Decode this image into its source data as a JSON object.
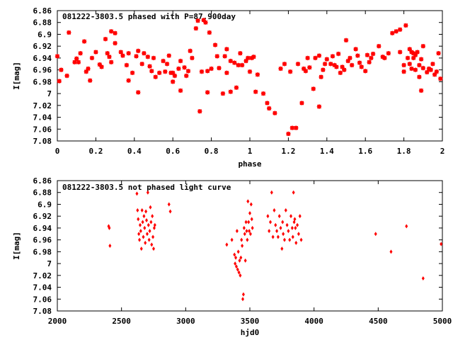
{
  "chart_data": [
    {
      "type": "scatter",
      "title": "081222-3803.5 phased with P=87.900day",
      "xlabel": "phase",
      "ylabel": "I[mag]",
      "xlim": [
        0,
        2
      ],
      "ylim": [
        7.08,
        6.86
      ],
      "y_inverted": true,
      "grid": false,
      "marker": "star",
      "color": "#ff0000",
      "xticks": [
        "0",
        "0.2",
        "0.4",
        "0.6",
        "0.8",
        "1",
        "1.2",
        "1.4",
        "1.6",
        "1.8",
        "2"
      ],
      "yticks": [
        "6.86",
        "6.88",
        "6.9",
        "6.92",
        "6.94",
        "6.96",
        "6.98",
        "7",
        "7.02",
        "7.04",
        "7.06",
        "7.08"
      ],
      "points": [
        [
          0.0,
          6.937
        ],
        [
          0.01,
          6.979
        ],
        [
          0.02,
          6.96
        ],
        [
          0.05,
          6.97
        ],
        [
          0.06,
          6.897
        ],
        [
          0.09,
          6.947
        ],
        [
          0.1,
          6.941
        ],
        [
          0.11,
          6.947
        ],
        [
          0.12,
          6.932
        ],
        [
          0.14,
          6.912
        ],
        [
          0.15,
          6.963
        ],
        [
          0.16,
          6.958
        ],
        [
          0.17,
          6.978
        ],
        [
          0.18,
          6.94
        ],
        [
          0.2,
          6.93
        ],
        [
          0.22,
          6.951
        ],
        [
          0.23,
          6.955
        ],
        [
          0.25,
          6.908
        ],
        [
          0.26,
          6.932
        ],
        [
          0.27,
          6.938
        ],
        [
          0.28,
          6.947
        ],
        [
          0.28,
          6.895
        ],
        [
          0.3,
          6.898
        ],
        [
          0.3,
          6.915
        ],
        [
          0.33,
          6.93
        ],
        [
          0.34,
          6.936
        ],
        [
          0.36,
          6.952
        ],
        [
          0.37,
          6.978
        ],
        [
          0.37,
          6.932
        ],
        [
          0.39,
          6.965
        ],
        [
          0.41,
          6.937
        ],
        [
          0.42,
          6.928
        ],
        [
          0.42,
          6.998
        ],
        [
          0.44,
          6.95
        ],
        [
          0.45,
          6.932
        ],
        [
          0.47,
          6.938
        ],
        [
          0.48,
          6.954
        ],
        [
          0.49,
          6.962
        ],
        [
          0.5,
          6.94
        ],
        [
          0.51,
          6.972
        ],
        [
          0.53,
          6.965
        ],
        [
          0.55,
          6.945
        ],
        [
          0.56,
          6.963
        ],
        [
          0.57,
          6.95
        ],
        [
          0.58,
          6.936
        ],
        [
          0.59,
          6.965
        ],
        [
          0.6,
          6.98
        ],
        [
          0.6,
          6.965
        ],
        [
          0.61,
          6.97
        ],
        [
          0.63,
          6.958
        ],
        [
          0.64,
          6.995
        ],
        [
          0.64,
          6.945
        ],
        [
          0.66,
          6.956
        ],
        [
          0.67,
          6.97
        ],
        [
          0.68,
          6.962
        ],
        [
          0.69,
          6.928
        ],
        [
          0.7,
          6.94
        ],
        [
          0.72,
          6.89
        ],
        [
          0.73,
          6.877
        ],
        [
          0.74,
          7.03
        ],
        [
          0.75,
          6.963
        ],
        [
          0.76,
          6.876
        ],
        [
          0.77,
          6.88
        ],
        [
          0.78,
          6.962
        ],
        [
          0.78,
          6.998
        ],
        [
          0.79,
          6.897
        ],
        [
          0.8,
          6.958
        ],
        [
          0.82,
          6.918
        ],
        [
          0.83,
          6.937
        ],
        [
          0.84,
          6.957
        ],
        [
          0.86,
          7.0
        ],
        [
          0.87,
          6.937
        ],
        [
          0.88,
          6.925
        ],
        [
          0.88,
          6.965
        ],
        [
          0.9,
          6.945
        ],
        [
          0.9,
          6.997
        ],
        [
          0.92,
          6.948
        ],
        [
          0.93,
          6.99
        ],
        [
          0.94,
          6.952
        ],
        [
          0.95,
          6.932
        ],
        [
          0.96,
          6.952
        ],
        [
          0.98,
          6.945
        ],
        [
          0.99,
          6.94
        ],
        [
          1.0,
          6.963
        ],
        [
          1.01,
          6.94
        ],
        [
          1.02,
          6.938
        ],
        [
          1.03,
          6.997
        ],
        [
          1.04,
          6.968
        ],
        [
          1.07,
          7.0
        ],
        [
          1.09,
          7.016
        ],
        [
          1.1,
          7.025
        ],
        [
          1.13,
          7.033
        ],
        [
          1.16,
          6.958
        ],
        [
          1.18,
          6.95
        ],
        [
          1.2,
          7.068
        ],
        [
          1.21,
          6.963
        ],
        [
          1.22,
          7.058
        ],
        [
          1.24,
          7.058
        ],
        [
          1.25,
          6.95
        ],
        [
          1.27,
          7.016
        ],
        [
          1.28,
          6.958
        ],
        [
          1.29,
          6.962
        ],
        [
          1.3,
          6.94
        ],
        [
          1.31,
          6.956
        ],
        [
          1.33,
          6.992
        ],
        [
          1.34,
          6.94
        ],
        [
          1.36,
          6.936
        ],
        [
          1.36,
          7.022
        ],
        [
          1.37,
          6.972
        ],
        [
          1.38,
          6.96
        ],
        [
          1.39,
          6.95
        ],
        [
          1.4,
          6.942
        ],
        [
          1.42,
          6.95
        ],
        [
          1.43,
          6.937
        ],
        [
          1.44,
          6.952
        ],
        [
          1.45,
          6.955
        ],
        [
          1.46,
          6.933
        ],
        [
          1.47,
          6.965
        ],
        [
          1.48,
          6.955
        ],
        [
          1.49,
          6.96
        ],
        [
          1.5,
          6.91
        ],
        [
          1.51,
          6.945
        ],
        [
          1.52,
          6.94
        ],
        [
          1.53,
          6.952
        ],
        [
          1.55,
          6.925
        ],
        [
          1.56,
          6.936
        ],
        [
          1.57,
          6.948
        ],
        [
          1.58,
          6.955
        ],
        [
          1.6,
          6.962
        ],
        [
          1.61,
          6.935
        ],
        [
          1.62,
          6.947
        ],
        [
          1.63,
          6.94
        ],
        [
          1.64,
          6.933
        ],
        [
          1.67,
          6.92
        ],
        [
          1.69,
          6.938
        ],
        [
          1.7,
          6.94
        ],
        [
          1.72,
          6.932
        ],
        [
          1.74,
          6.898
        ],
        [
          1.76,
          6.895
        ],
        [
          1.78,
          6.93
        ],
        [
          1.78,
          6.892
        ],
        [
          1.8,
          6.952
        ],
        [
          1.8,
          6.963
        ],
        [
          1.81,
          6.885
        ],
        [
          1.82,
          6.94
        ],
        [
          1.83,
          6.925
        ],
        [
          1.83,
          6.95
        ],
        [
          1.84,
          6.93
        ],
        [
          1.84,
          6.958
        ],
        [
          1.85,
          6.94
        ],
        [
          1.85,
          6.932
        ],
        [
          1.86,
          6.935
        ],
        [
          1.86,
          6.96
        ],
        [
          1.87,
          6.93
        ],
        [
          1.88,
          6.952
        ],
        [
          1.88,
          6.972
        ],
        [
          1.89,
          6.942
        ],
        [
          1.89,
          6.995
        ],
        [
          1.9,
          6.957
        ],
        [
          1.9,
          6.92
        ],
        [
          1.92,
          6.964
        ],
        [
          1.93,
          6.958
        ],
        [
          1.94,
          6.96
        ],
        [
          1.95,
          6.95
        ],
        [
          1.96,
          6.968
        ],
        [
          1.97,
          6.963
        ],
        [
          1.98,
          6.932
        ],
        [
          1.99,
          6.975
        ]
      ]
    },
    {
      "type": "scatter",
      "title": "081222-3803.5 not phased light curve",
      "xlabel": "hjd0",
      "ylabel": "I[mag]",
      "xlim": [
        2000,
        5000
      ],
      "ylim": [
        7.08,
        6.86
      ],
      "y_inverted": true,
      "grid": false,
      "marker": "diamond",
      "color": "#ff0000",
      "xticks": [
        "2000",
        "2500",
        "3000",
        "3500",
        "4000",
        "4500",
        "5000"
      ],
      "yticks": [
        "6.86",
        "6.88",
        "6.9",
        "6.92",
        "6.94",
        "6.96",
        "6.98",
        "7",
        "7.02",
        "7.04",
        "7.06",
        "7.08"
      ],
      "points": [
        [
          2400,
          6.937
        ],
        [
          2405,
          6.94
        ],
        [
          2410,
          6.97
        ],
        [
          2620,
          6.882
        ],
        [
          2625,
          6.91
        ],
        [
          2630,
          6.925
        ],
        [
          2635,
          6.95
        ],
        [
          2640,
          6.96
        ],
        [
          2645,
          6.935
        ],
        [
          2650,
          6.945
        ],
        [
          2655,
          6.975
        ],
        [
          2660,
          6.91
        ],
        [
          2665,
          6.93
        ],
        [
          2670,
          6.955
        ],
        [
          2675,
          6.92
        ],
        [
          2680,
          6.94
        ],
        [
          2685,
          6.965
        ],
        [
          2690,
          6.912
        ],
        [
          2695,
          6.927
        ],
        [
          2700,
          6.95
        ],
        [
          2705,
          6.88
        ],
        [
          2710,
          6.935
        ],
        [
          2715,
          6.96
        ],
        [
          2720,
          6.945
        ],
        [
          2725,
          6.905
        ],
        [
          2730,
          6.93
        ],
        [
          2735,
          6.968
        ],
        [
          2740,
          6.92
        ],
        [
          2745,
          6.955
        ],
        [
          2750,
          6.975
        ],
        [
          2755,
          6.94
        ],
        [
          2760,
          6.935
        ],
        [
          2870,
          6.9
        ],
        [
          2880,
          6.912
        ],
        [
          3320,
          6.968
        ],
        [
          3360,
          6.96
        ],
        [
          3380,
          6.985
        ],
        [
          3385,
          7.0
        ],
        [
          3390,
          6.99
        ],
        [
          3395,
          7.005
        ],
        [
          3400,
          6.945
        ],
        [
          3405,
          7.01
        ],
        [
          3410,
          6.98
        ],
        [
          3415,
          7.015
        ],
        [
          3420,
          6.995
        ],
        [
          3425,
          7.02
        ],
        [
          3430,
          6.99
        ],
        [
          3435,
          6.96
        ],
        [
          3440,
          6.97
        ],
        [
          3445,
          7.06
        ],
        [
          3450,
          7.052
        ],
        [
          3455,
          6.94
        ],
        [
          3460,
          6.95
        ],
        [
          3465,
          6.995
        ],
        [
          3470,
          6.93
        ],
        [
          3475,
          6.945
        ],
        [
          3480,
          6.96
        ],
        [
          3485,
          6.895
        ],
        [
          3490,
          6.93
        ],
        [
          3495,
          6.945
        ],
        [
          3500,
          6.915
        ],
        [
          3505,
          6.95
        ],
        [
          3510,
          6.9
        ],
        [
          3515,
          6.925
        ],
        [
          3520,
          6.94
        ],
        [
          3640,
          6.92
        ],
        [
          3650,
          6.945
        ],
        [
          3660,
          6.93
        ],
        [
          3670,
          6.88
        ],
        [
          3680,
          6.955
        ],
        [
          3690,
          6.91
        ],
        [
          3700,
          6.935
        ],
        [
          3710,
          6.945
        ],
        [
          3720,
          6.955
        ],
        [
          3730,
          6.92
        ],
        [
          3740,
          6.94
        ],
        [
          3750,
          6.975
        ],
        [
          3755,
          6.93
        ],
        [
          3760,
          6.95
        ],
        [
          3770,
          6.96
        ],
        [
          3780,
          6.91
        ],
        [
          3790,
          6.935
        ],
        [
          3800,
          6.945
        ],
        [
          3810,
          6.96
        ],
        [
          3820,
          6.92
        ],
        [
          3830,
          6.94
        ],
        [
          3835,
          6.955
        ],
        [
          3840,
          6.88
        ],
        [
          3845,
          6.93
        ],
        [
          3850,
          6.925
        ],
        [
          3855,
          6.94
        ],
        [
          3860,
          6.965
        ],
        [
          3870,
          6.935
        ],
        [
          3880,
          6.95
        ],
        [
          3890,
          6.92
        ],
        [
          3900,
          6.96
        ],
        [
          4480,
          6.95
        ],
        [
          4600,
          6.98
        ],
        [
          4720,
          6.937
        ],
        [
          4850,
          7.025
        ],
        [
          4990,
          6.967
        ]
      ]
    }
  ]
}
